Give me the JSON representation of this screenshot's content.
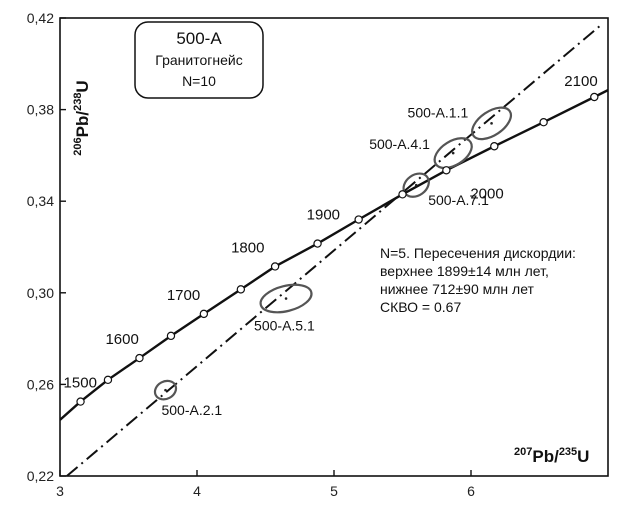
{
  "chart_data": {
    "type": "scatter",
    "title": "",
    "xlabel": {
      "pre": "207",
      "mid": "Pb/",
      "sup2": "235",
      "post": "U"
    },
    "ylabel": {
      "pre": "206",
      "mid": "Pb/",
      "sup2": "238",
      "post": "U"
    },
    "xlim": [
      3.0,
      7.0
    ],
    "ylim": [
      0.22,
      0.42
    ],
    "x_ticks": [
      {
        "value": 3,
        "label": "3"
      },
      {
        "value": 4,
        "label": "4"
      },
      {
        "value": 5,
        "label": "5"
      },
      {
        "value": 6,
        "label": "6"
      }
    ],
    "y_ticks": [
      {
        "value": 0.22,
        "label": "0,22"
      },
      {
        "value": 0.26,
        "label": "0,26"
      },
      {
        "value": 0.3,
        "label": "0,30"
      },
      {
        "value": 0.34,
        "label": "0,34"
      },
      {
        "value": 0.38,
        "label": "0,38"
      },
      {
        "value": 0.42,
        "label": "0,42"
      }
    ],
    "concordia_points": [
      {
        "age": "1500",
        "x": 3.15,
        "y": 0.2525,
        "labeled": true
      },
      {
        "age": "1550",
        "x": 3.35,
        "y": 0.262,
        "labeled": false
      },
      {
        "age": "1600",
        "x": 3.58,
        "y": 0.2715,
        "labeled": true
      },
      {
        "age": "1650",
        "x": 3.81,
        "y": 0.2812,
        "labeled": false
      },
      {
        "age": "1700",
        "x": 4.05,
        "y": 0.2908,
        "labeled": true
      },
      {
        "age": "1750",
        "x": 4.32,
        "y": 0.3015,
        "labeled": false
      },
      {
        "age": "1800",
        "x": 4.57,
        "y": 0.3115,
        "labeled": true
      },
      {
        "age": "1850",
        "x": 4.88,
        "y": 0.3215,
        "labeled": false
      },
      {
        "age": "1900",
        "x": 5.18,
        "y": 0.332,
        "labeled": true
      },
      {
        "age": "1950",
        "x": 5.5,
        "y": 0.343,
        "labeled": false
      },
      {
        "age": "2000",
        "x": 5.82,
        "y": 0.3535,
        "labeled": true
      },
      {
        "age": "2050",
        "x": 6.17,
        "y": 0.364,
        "labeled": false
      },
      {
        "age": "2075",
        "x": 6.53,
        "y": 0.3745,
        "labeled": false
      },
      {
        "age": "2100",
        "x": 6.9,
        "y": 0.3855,
        "labeled": true
      }
    ],
    "concordia_curve_ends": {
      "x0": 3.0,
      "y0": 0.2445,
      "x1": 7.0,
      "y1": 0.3885
    },
    "discordia_line": {
      "x0": 3.05,
      "y0": 0.22,
      "x1": 6.95,
      "y1": 0.417
    },
    "ellipses": [
      {
        "id": "500-A.1.1",
        "cx": 6.15,
        "cy": 0.374,
        "rx": 0.16,
        "ry": 0.0052,
        "angle": -34
      },
      {
        "id": "500-A.4.1",
        "cx": 5.87,
        "cy": 0.361,
        "rx": 0.15,
        "ry": 0.0052,
        "angle": -32
      },
      {
        "id": "500-A.7.1",
        "cx": 5.6,
        "cy": 0.347,
        "rx": 0.1,
        "ry": 0.0045,
        "angle": -36
      },
      {
        "id": "500-A.5.1",
        "cx": 4.65,
        "cy": 0.2975,
        "rx": 0.19,
        "ry": 0.0055,
        "angle": -14
      },
      {
        "id": "500-A.2.1",
        "cx": 3.77,
        "cy": 0.2575,
        "rx": 0.08,
        "ry": 0.0038,
        "angle": -28
      }
    ],
    "info_box": {
      "title": "500-А",
      "rock": "Гранитогнейс",
      "n": "N=10"
    },
    "annotation": [
      "N=5. Пересечения дискордии:",
      "верхнее 1899±14 млн лет,",
      "нижнее 712±90 млн лет",
      "СКВО = 0.67"
    ]
  }
}
